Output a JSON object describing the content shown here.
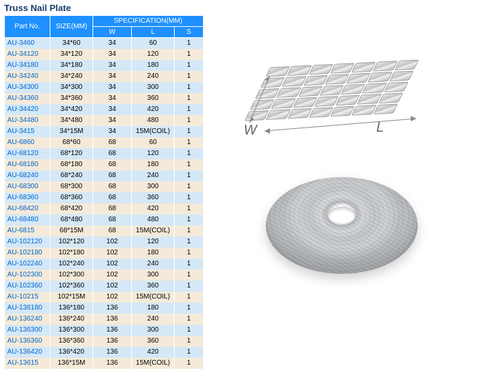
{
  "title": "Truss Nail Plate",
  "table": {
    "header": {
      "part": "Part No.",
      "size": "SIZE(MM)",
      "spec": "SPECIFICATION(MM)",
      "w": "W",
      "l": "L",
      "s": "S"
    },
    "rows": [
      {
        "part": "AU-3460",
        "size": "34*60",
        "w": "34",
        "l": "60",
        "s": "1"
      },
      {
        "part": "AU-34120",
        "size": "34*120",
        "w": "34",
        "l": "120",
        "s": "1"
      },
      {
        "part": "AU-34180",
        "size": "34*180",
        "w": "34",
        "l": "180",
        "s": "1"
      },
      {
        "part": "AU-34240",
        "size": "34*240",
        "w": "34",
        "l": "240",
        "s": "1"
      },
      {
        "part": "AU-34300",
        "size": "34*300",
        "w": "34",
        "l": "300",
        "s": "1"
      },
      {
        "part": "AU-34360",
        "size": "34*360",
        "w": "34",
        "l": "360",
        "s": "1"
      },
      {
        "part": "AU-34420",
        "size": "34*420",
        "w": "34",
        "l": "420",
        "s": "1"
      },
      {
        "part": "AU-34480",
        "size": "34*480",
        "w": "34",
        "l": "480",
        "s": "1"
      },
      {
        "part": "AU-3415",
        "size": "34*15M",
        "w": "34",
        "l": "15M(COIL)",
        "s": "1"
      },
      {
        "part": "AU-6860",
        "size": "68*60",
        "w": "68",
        "l": "60",
        "s": "1"
      },
      {
        "part": "AU-68120",
        "size": "68*120",
        "w": "68",
        "l": "120",
        "s": "1"
      },
      {
        "part": "AU-68180",
        "size": "68*180",
        "w": "68",
        "l": "180",
        "s": "1"
      },
      {
        "part": "AU-68240",
        "size": "68*240",
        "w": "68",
        "l": "240",
        "s": "1"
      },
      {
        "part": "AU-68300",
        "size": "68*300",
        "w": "68",
        "l": "300",
        "s": "1"
      },
      {
        "part": "AU-68360",
        "size": "68*360",
        "w": "68",
        "l": "360",
        "s": "1"
      },
      {
        "part": "AU-68420",
        "size": "68*420",
        "w": "68",
        "l": "420",
        "s": "1"
      },
      {
        "part": "AU-68480",
        "size": "68*480",
        "w": "68",
        "l": "480",
        "s": "1"
      },
      {
        "part": "AU-6815",
        "size": "68*15M",
        "w": "68",
        "l": "15M(COIL)",
        "s": "1"
      },
      {
        "part": "AU-102120",
        "size": "102*120",
        "w": "102",
        "l": "120",
        "s": "1"
      },
      {
        "part": "AU-102180",
        "size": "102*180",
        "w": "102",
        "l": "180",
        "s": "1"
      },
      {
        "part": "AU-102240",
        "size": "102*240",
        "w": "102",
        "l": "240",
        "s": "1"
      },
      {
        "part": "AU-102300",
        "size": "102*300",
        "w": "102",
        "l": "300",
        "s": "1"
      },
      {
        "part": "AU-102360",
        "size": "102*360",
        "w": "102",
        "l": "360",
        "s": "1"
      },
      {
        "part": "AU-10215",
        "size": "102*15M",
        "w": "102",
        "l": "15M(COIL)",
        "s": "1"
      },
      {
        "part": "AU-136180",
        "size": "136*180",
        "w": "136",
        "l": "180",
        "s": "1"
      },
      {
        "part": "AU-136240",
        "size": "136*240",
        "w": "136",
        "l": "240",
        "s": "1"
      },
      {
        "part": "AU-136300",
        "size": "136*300",
        "w": "136",
        "l": "300",
        "s": "1"
      },
      {
        "part": "AU-136360",
        "size": "136*360",
        "w": "136",
        "l": "360",
        "s": "1"
      },
      {
        "part": "AU-136420",
        "size": "136*420",
        "w": "136",
        "l": "420",
        "s": "1"
      },
      {
        "part": "AU-13615",
        "size": "136*15M",
        "w": "136",
        "l": "15M(COIL)",
        "s": "1"
      }
    ],
    "colors": {
      "header_bg": "#1e90ff",
      "header_fg": "#ffffff",
      "row_odd_bg": "#d4e8f7",
      "row_even_bg": "#f5ead9",
      "part_link_color": "#0066cc"
    }
  },
  "diagram": {
    "w_label": "W",
    "l_label": "L"
  }
}
